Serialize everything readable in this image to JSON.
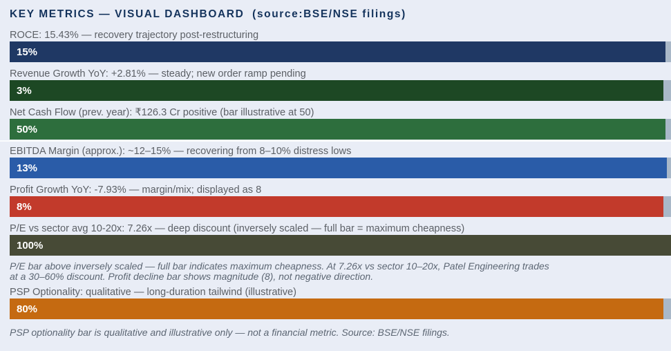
{
  "title": "KEY METRICS — VISUAL DASHBOARD  (source:BSE/NSE filings)",
  "colors": {
    "background": "#E9EDF6",
    "track": "#A9B8C8",
    "title_text": "#14335C",
    "label_text": "#5C6066",
    "note_text": "#5C6673",
    "bar_value_text": "#FFFFFF",
    "separator": "#FAFCFE"
  },
  "metrics": [
    {
      "label": "ROCE: 15.43% — recovery trajectory post-restructuring",
      "value_label": "15%",
      "display_value": 15,
      "color": "#1F3864",
      "fill_pct": 99.2
    },
    {
      "label": "Revenue Growth YoY: +2.81% — steady; new order ramp pending",
      "value_label": "3%",
      "display_value": 3,
      "color": "#1D4824",
      "fill_pct": 98.9
    },
    {
      "label": "Net Cash Flow (prev. year): ₹126.3 Cr positive (bar illustrative at 50)",
      "value_label": "50%",
      "display_value": 50,
      "color": "#2D6E3D",
      "fill_pct": 99.2
    },
    {
      "label": "EBITDA Margin (approx.): ~12–15% — recovering from 8–10% distress lows",
      "value_label": "13%",
      "display_value": 13,
      "color": "#2A5CA8",
      "fill_pct": 99.4
    },
    {
      "label": "Profit Growth YoY: -7.93% — margin/mix; displayed as 8",
      "value_label": "8%",
      "display_value": 8,
      "color": "#C23A2B",
      "fill_pct": 98.9
    },
    {
      "label": "P/E vs sector avg 10-20x: 7.26x — deep discount (inversely scaled — full bar = maximum cheapness)",
      "value_label": "100%",
      "display_value": 100,
      "color": "#474A36",
      "fill_pct": 100
    },
    {
      "label": "PSP Optionality: qualitative — long-duration tailwind (illustrative)",
      "value_label": "80%",
      "display_value": 80,
      "color": "#C56A11",
      "fill_pct": 98.8
    }
  ],
  "pe_note": {
    "line1": "P/E bar above inversely scaled — full bar indicates maximum cheapness. At 7.26x vs sector 10–20x, Patel Engineering trades",
    "line2": "at a 30–60% discount. Profit decline bar shows magnitude (8), not negative direction."
  },
  "footnote": "PSP optionality bar is qualitative and illustrative only — not a financial metric. Source: BSE/NSE filings.",
  "chart_data": {
    "type": "bar",
    "orientation": "horizontal",
    "title": "KEY METRICS — VISUAL DASHBOARD (source:BSE/NSE filings)",
    "categories": [
      "ROCE",
      "Revenue Growth YoY",
      "Net Cash Flow (prev. year)",
      "EBITDA Margin (approx.)",
      "Profit Growth YoY",
      "P/E vs sector avg 10-20x",
      "PSP Optionality"
    ],
    "values": [
      15,
      3,
      50,
      13,
      8,
      100,
      80
    ],
    "value_labels": [
      "15%",
      "3%",
      "50%",
      "13%",
      "8%",
      "100%",
      "80%"
    ],
    "actual_reported_values": [
      "15.43%",
      "+2.81%",
      "₹126.3 Cr positive",
      "~12–15%",
      "-7.93%",
      "7.26x",
      "qualitative"
    ],
    "bar_colors": [
      "#1F3864",
      "#1D4824",
      "#2D6E3D",
      "#2A5CA8",
      "#C23A2B",
      "#474A36",
      "#C56A11"
    ],
    "xlim": [
      0,
      100
    ],
    "grid": false,
    "legend": false,
    "bars_illustrative": true,
    "annotations": [
      "P/E bar above inversely scaled — full bar indicates maximum cheapness. At 7.26x vs sector 10–20x, Patel Engineering trades at a 30–60% discount. Profit decline bar shows magnitude (8), not negative direction.",
      "PSP optionality bar is qualitative and illustrative only — not a financial metric. Source: BSE/NSE filings."
    ]
  }
}
